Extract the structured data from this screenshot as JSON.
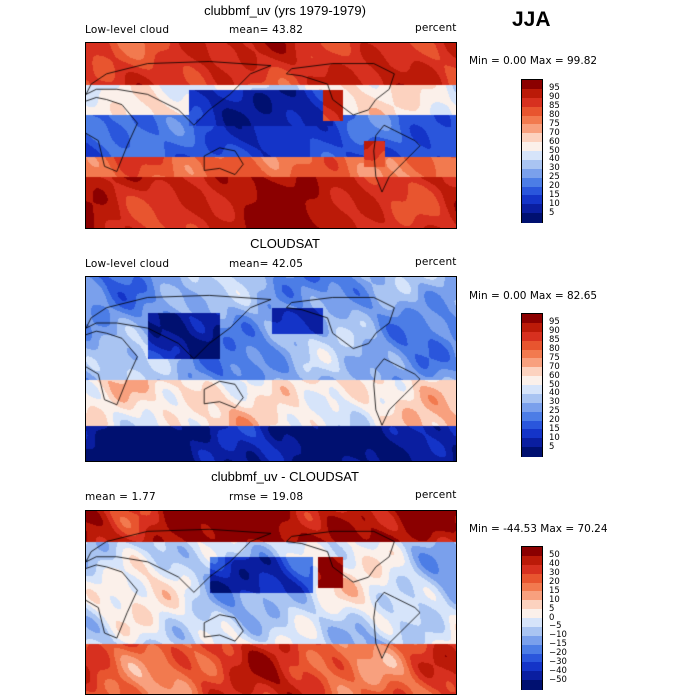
{
  "season": "JJA",
  "chart_data": [
    {
      "type": "heatmap",
      "title": "clubbmf_uv (yrs 1979-1979)",
      "left_label": "Low-level cloud",
      "mean_text": "mean=  43.82",
      "units": "percent",
      "minmax_text": "Min =   0.00 Max =  99.82",
      "min": 0.0,
      "max": 99.82,
      "mean": 43.82,
      "levels": [
        "95",
        "90",
        "85",
        "80",
        "75",
        "70",
        "60",
        "50",
        "40",
        "30",
        "25",
        "20",
        "15",
        "10",
        "5"
      ],
      "colors": [
        "#8b0000",
        "#bb1a08",
        "#d7301f",
        "#e8552f",
        "#f27a4f",
        "#f8a07e",
        "#fcd2bf",
        "#fbf0ea",
        "#d6e4fa",
        "#a9c4f2",
        "#7aa0ec",
        "#4c7de6",
        "#2a56dc",
        "#1434c8",
        "#0a1ea0",
        "#001070"
      ],
      "x_axis": "longitude",
      "y_axis": "latitude"
    },
    {
      "type": "heatmap",
      "title": "CLOUDSAT",
      "left_label": "Low-level cloud",
      "mean_text": "mean=  42.05",
      "units": "percent",
      "minmax_text": "Min =   0.00 Max =  82.65",
      "min": 0.0,
      "max": 82.65,
      "mean": 42.05,
      "levels": [
        "95",
        "90",
        "85",
        "80",
        "75",
        "70",
        "60",
        "50",
        "40",
        "30",
        "25",
        "20",
        "15",
        "10",
        "5"
      ],
      "colors": [
        "#8b0000",
        "#bb1a08",
        "#d7301f",
        "#e8552f",
        "#f27a4f",
        "#f8a07e",
        "#fcd2bf",
        "#fbf0ea",
        "#d6e4fa",
        "#a9c4f2",
        "#7aa0ec",
        "#4c7de6",
        "#2a56dc",
        "#1434c8",
        "#0a1ea0",
        "#001070"
      ],
      "x_axis": "longitude",
      "y_axis": "latitude"
    },
    {
      "type": "heatmap",
      "title": "clubbmf_uv - CLOUDSAT",
      "left_label": "mean =   1.77",
      "mean_text": "rmse =  19.08",
      "units": "percent",
      "minmax_text": "Min = -44.53 Max =  70.24",
      "min": -44.53,
      "max": 70.24,
      "mean": 1.77,
      "rmse": 19.08,
      "levels": [
        "50",
        "40",
        "30",
        "20",
        "15",
        "10",
        "5",
        "0",
        "−5",
        "−10",
        "−15",
        "−20",
        "−30",
        "−40",
        "−50"
      ],
      "colors": [
        "#8b0000",
        "#bb1a08",
        "#d7301f",
        "#e8552f",
        "#f27a4f",
        "#f8a07e",
        "#fcd2bf",
        "#fbf0ea",
        "#d6e4fa",
        "#a9c4f2",
        "#7aa0ec",
        "#4c7de6",
        "#2a56dc",
        "#1434c8",
        "#0a1ea0",
        "#001070"
      ],
      "x_axis": "longitude",
      "y_axis": "latitude"
    }
  ]
}
